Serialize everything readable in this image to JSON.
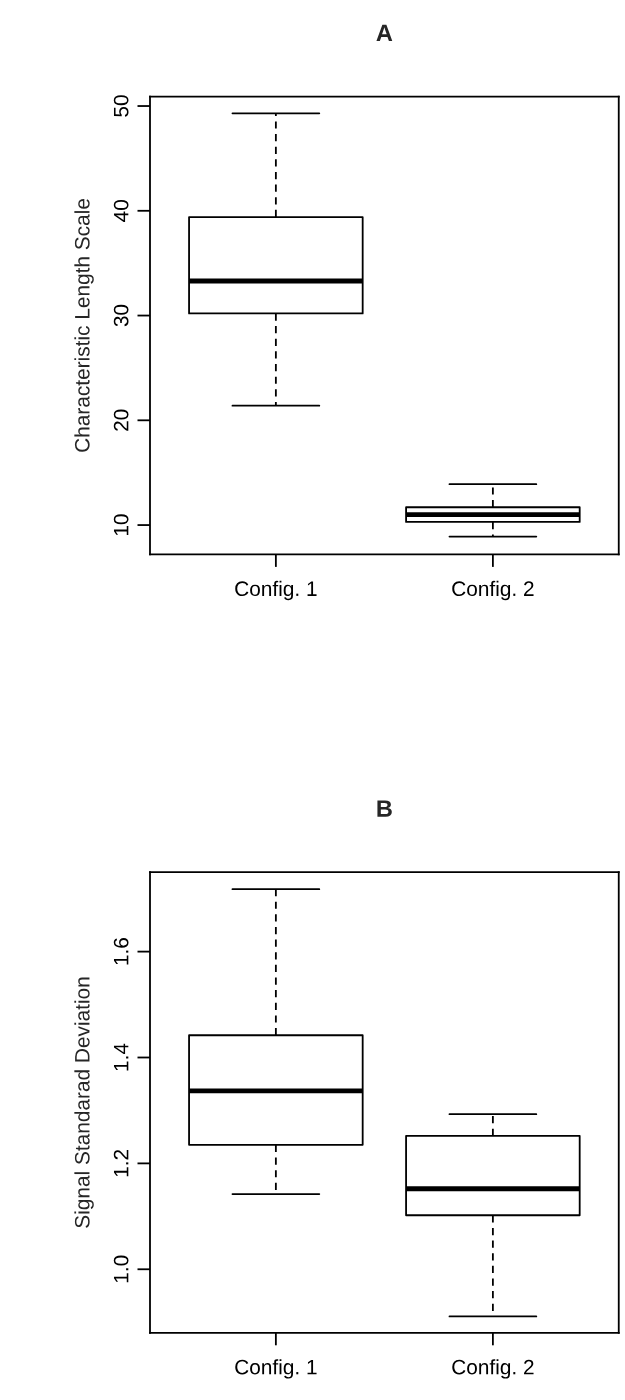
{
  "chart_data": [
    {
      "type": "box",
      "title": "A",
      "ylabel": "Characteristic Length Scale",
      "categories": [
        "Config. 1",
        "Config. 2"
      ],
      "boxes": [
        {
          "low": 21.4,
          "q1": 30.2,
          "median": 33.3,
          "q3": 39.4,
          "high": 49.3
        },
        {
          "low": 8.9,
          "q1": 10.3,
          "median": 11.0,
          "q3": 11.7,
          "high": 13.9
        }
      ],
      "ylim": [
        7.2,
        50.9
      ],
      "yticks": [
        10,
        20,
        30,
        40,
        50
      ]
    },
    {
      "type": "box",
      "title": "B",
      "ylabel": "Signal Standarad Deviation",
      "categories": [
        "Config. 1",
        "Config. 2"
      ],
      "boxes": [
        {
          "low": 1.142,
          "q1": 1.235,
          "median": 1.337,
          "q3": 1.442,
          "high": 1.718
        },
        {
          "low": 0.911,
          "q1": 1.102,
          "median": 1.152,
          "q3": 1.252,
          "high": 1.293
        }
      ],
      "ylim": [
        0.88,
        1.75
      ],
      "yticks": [
        {
          "value": 1.0,
          "label": "1.0"
        },
        1.2,
        1.4,
        1.6
      ]
    }
  ]
}
